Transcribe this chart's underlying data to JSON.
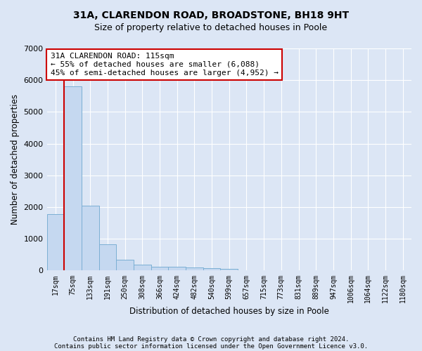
{
  "title": "31A, CLARENDON ROAD, BROADSTONE, BH18 9HT",
  "subtitle": "Size of property relative to detached houses in Poole",
  "xlabel": "Distribution of detached houses by size in Poole",
  "ylabel": "Number of detached properties",
  "footnote1": "Contains HM Land Registry data © Crown copyright and database right 2024.",
  "footnote2": "Contains public sector information licensed under the Open Government Licence v3.0.",
  "bin_labels": [
    "17sqm",
    "75sqm",
    "133sqm",
    "191sqm",
    "250sqm",
    "308sqm",
    "366sqm",
    "424sqm",
    "482sqm",
    "540sqm",
    "599sqm",
    "657sqm",
    "715sqm",
    "773sqm",
    "831sqm",
    "889sqm",
    "947sqm",
    "1006sqm",
    "1064sqm",
    "1122sqm",
    "1180sqm"
  ],
  "bar_values": [
    1780,
    5800,
    2050,
    820,
    340,
    190,
    130,
    110,
    100,
    70,
    50,
    0,
    0,
    0,
    0,
    0,
    0,
    0,
    0,
    0,
    0
  ],
  "bar_color": "#c5d8f0",
  "bar_edge_color": "#7bafd4",
  "background_color": "#dce6f5",
  "grid_color": "#ffffff",
  "ylim": [
    0,
    7000
  ],
  "property_line_x": 0.5,
  "annotation_text": "31A CLARENDON ROAD: 115sqm\n← 55% of detached houses are smaller (6,088)\n45% of semi-detached houses are larger (4,952) →",
  "annotation_box_color": "#ffffff",
  "annotation_box_edge_color": "#cc0000",
  "red_line_color": "#cc0000",
  "title_fontsize": 10,
  "subtitle_fontsize": 9,
  "axis_label_fontsize": 8.5,
  "tick_fontsize": 7,
  "annotation_fontsize": 8,
  "footnote_fontsize": 6.5
}
